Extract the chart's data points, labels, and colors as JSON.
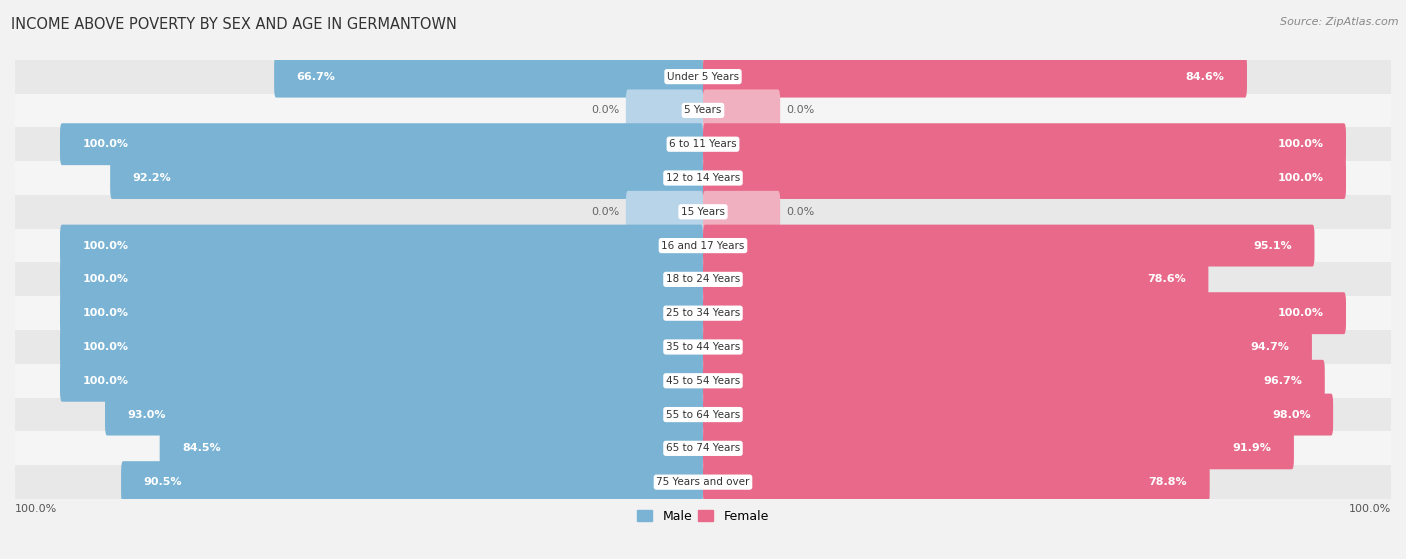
{
  "title": "INCOME ABOVE POVERTY BY SEX AND AGE IN GERMANTOWN",
  "source": "Source: ZipAtlas.com",
  "categories": [
    "Under 5 Years",
    "5 Years",
    "6 to 11 Years",
    "12 to 14 Years",
    "15 Years",
    "16 and 17 Years",
    "18 to 24 Years",
    "25 to 34 Years",
    "35 to 44 Years",
    "45 to 54 Years",
    "55 to 64 Years",
    "65 to 74 Years",
    "75 Years and over"
  ],
  "male": [
    66.7,
    0.0,
    100.0,
    92.2,
    0.0,
    100.0,
    100.0,
    100.0,
    100.0,
    100.0,
    93.0,
    84.5,
    90.5
  ],
  "female": [
    84.6,
    0.0,
    100.0,
    100.0,
    0.0,
    95.1,
    78.6,
    100.0,
    94.7,
    96.7,
    98.0,
    91.9,
    78.8
  ],
  "male_color": "#7ab3d4",
  "female_color": "#e8698a",
  "male_color_light": "#b8d4e8",
  "female_color_light": "#f0b0c0",
  "bg_color": "#f2f2f2",
  "row_color_dark": "#e8e8e8",
  "row_color_light": "#f5f5f5",
  "legend_male": "Male",
  "legend_female": "Female",
  "x_axis_label": "100.0%"
}
